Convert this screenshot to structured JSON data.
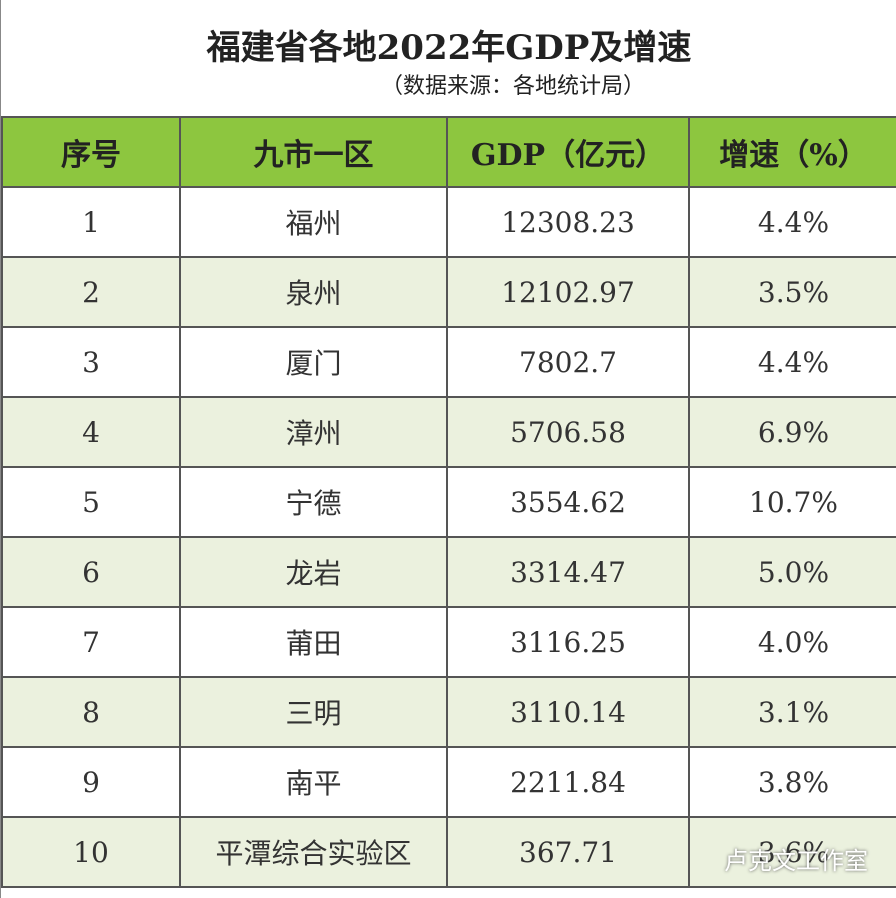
{
  "header": {
    "title": "福建省各地2022年GDP及增速",
    "subtitle": "（数据来源：各地统计局）"
  },
  "table": {
    "columns": [
      "序号",
      "九市一区",
      "GDP（亿元）",
      "增速（%）"
    ],
    "rows": [
      [
        "1",
        "福州",
        "12308.23",
        "4.4%"
      ],
      [
        "2",
        "泉州",
        "12102.97",
        "3.5%"
      ],
      [
        "3",
        "厦门",
        "7802.7",
        "4.4%"
      ],
      [
        "4",
        "漳州",
        "5706.58",
        "6.9%"
      ],
      [
        "5",
        "宁德",
        "3554.62",
        "10.7%"
      ],
      [
        "6",
        "龙岩",
        "3314.47",
        "5.0%"
      ],
      [
        "7",
        "莆田",
        "3116.25",
        "4.0%"
      ],
      [
        "8",
        "三明",
        "3110.14",
        "3.1%"
      ],
      [
        "9",
        "南平",
        "2211.84",
        "3.8%"
      ],
      [
        "10",
        "平潭综合实验区",
        "367.71",
        "3.6%"
      ]
    ]
  },
  "watermark": "卢克文工作室"
}
